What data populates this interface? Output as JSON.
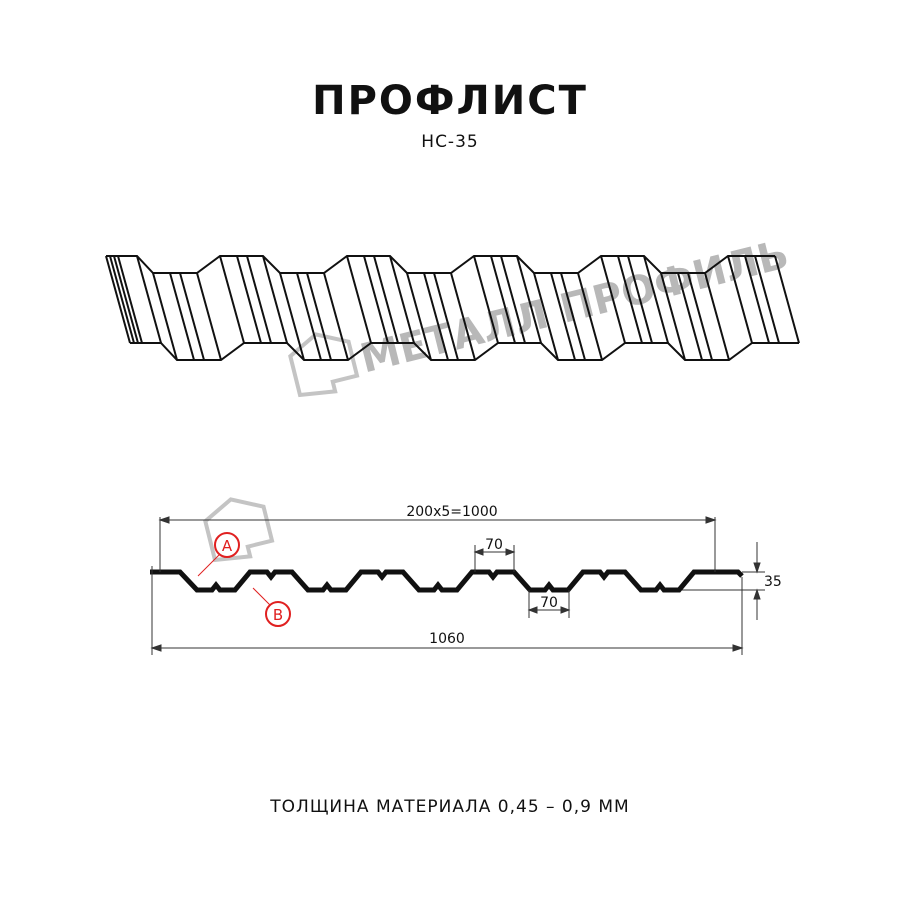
{
  "title": "ПРОФЛИСТ",
  "subtitle": "НС-35",
  "watermark": "МЕТАЛЛ ПРОФИЛЬ",
  "dimensions": {
    "pitch_total": "200x5=1000",
    "top_flat": "70",
    "bottom_flat": "70",
    "height": "35",
    "full_width": "1060"
  },
  "labels": {
    "a": "A",
    "b": "B"
  },
  "footer": "ТОЛЩИНА МАТЕРИАЛА 0,45 – 0,9 ММ",
  "colors": {
    "line": "#111111",
    "dimension": "#333333",
    "callout": "#e02020",
    "watermark": "#b8b8b8"
  }
}
